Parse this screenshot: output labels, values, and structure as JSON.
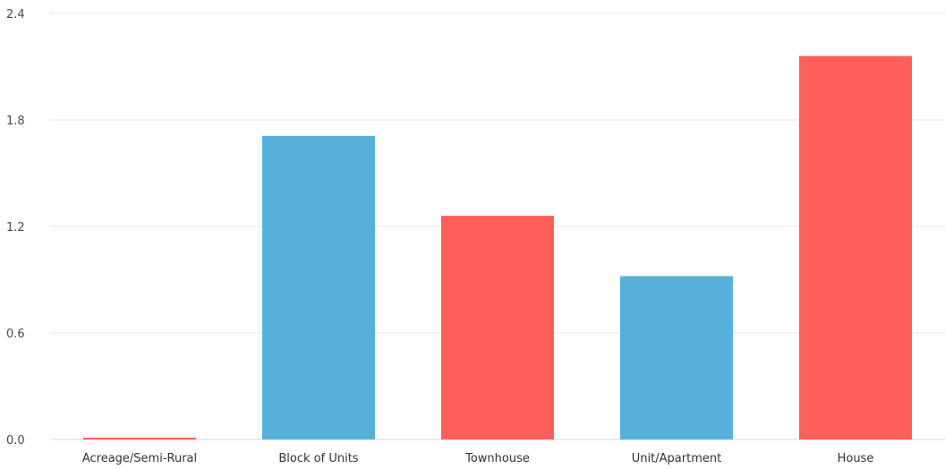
{
  "chart_data": {
    "type": "bar",
    "title": "",
    "xlabel": "",
    "ylabel": "",
    "categories": [
      "Acreage/Semi-Rural",
      "Block of Units",
      "Townhouse",
      "Unit/Apartment",
      "House"
    ],
    "values": [
      0.01,
      1.71,
      1.26,
      0.92,
      2.16
    ],
    "bar_colors": [
      "#ff5f5a",
      "#56b0da",
      "#ff5f5a",
      "#56b0da",
      "#ff5f5a"
    ],
    "ylim": [
      0,
      2.4
    ],
    "y_ticks": [
      "0.0",
      "0.6",
      "1.2",
      "1.8",
      "2.4"
    ],
    "grid": true,
    "legend": "none"
  }
}
